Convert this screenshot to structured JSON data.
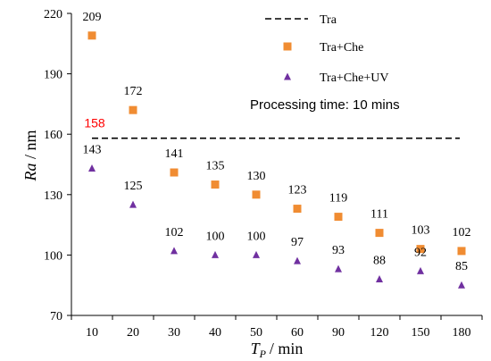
{
  "chart_data": {
    "type": "scatter",
    "categories": [
      "10",
      "20",
      "30",
      "40",
      "50",
      "60",
      "90",
      "120",
      "150",
      "180"
    ],
    "xlabel": {
      "main": "T",
      "sub": "P",
      "unit": "/ min"
    },
    "ylabel": {
      "main": "Ra",
      "unit": " / nm"
    },
    "ylim": [
      70,
      220
    ],
    "yticks": [
      "70",
      "100",
      "130",
      "160",
      "190",
      "220"
    ],
    "grid": false,
    "legend_position": "top-right",
    "annotation": "Processing time: 10 mins",
    "baseline": {
      "name": "Tra",
      "value": 158,
      "label": "158",
      "label_color": "#ff0000",
      "style": "dashed",
      "color": "#000000"
    },
    "series": [
      {
        "name": "Tra+Che",
        "marker": "square",
        "color": "#f08c32",
        "values": [
          209,
          172,
          141,
          135,
          130,
          123,
          119,
          111,
          103,
          102
        ],
        "labels": [
          "209",
          "172",
          "141",
          "135",
          "130",
          "123",
          "119",
          "111",
          "103",
          "102"
        ]
      },
      {
        "name": "Tra+Che+UV",
        "marker": "triangle",
        "color": "#7030a0",
        "values": [
          143,
          125,
          102,
          100,
          100,
          97,
          93,
          88,
          92,
          85
        ],
        "labels": [
          "143",
          "125",
          "102",
          "100",
          "100",
          "97",
          "93",
          "88",
          "92",
          "85"
        ]
      }
    ]
  }
}
